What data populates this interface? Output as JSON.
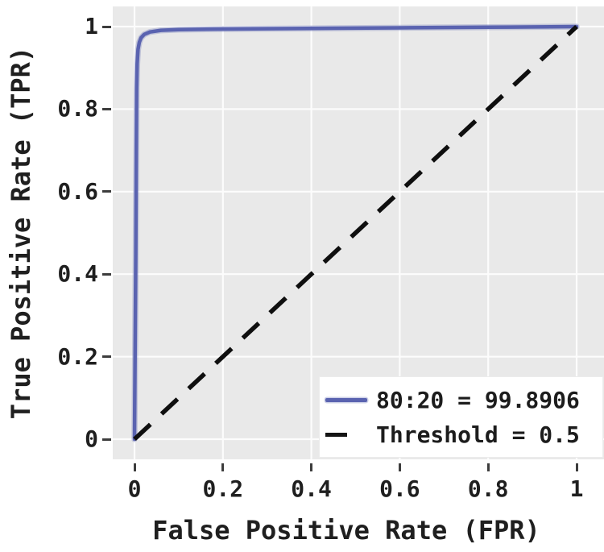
{
  "chart_data": {
    "type": "line",
    "title": "",
    "xlabel": "False Positive Rate (FPR)",
    "ylabel": "True Positive Rate (TPR)",
    "xlim": [
      -0.05,
      1.06
    ],
    "ylim": [
      -0.05,
      1.05
    ],
    "grid": true,
    "legend_position": "lower right",
    "xticks": [
      0,
      0.2,
      0.4,
      0.6,
      0.8,
      1
    ],
    "yticks": [
      0,
      0.2,
      0.4,
      0.6,
      0.8,
      1
    ],
    "xtick_labels": [
      "0",
      "0.2",
      "0.4",
      "0.6",
      "0.8",
      "1"
    ],
    "ytick_labels": [
      "0",
      "0.2",
      "0.4",
      "0.6",
      "0.8",
      "1"
    ],
    "series": [
      {
        "name": "80:20 = 99.8906",
        "style": "solid",
        "color": "#5a63b0",
        "width": 4.5,
        "points": [
          [
            0,
            0
          ],
          [
            0.003,
            0.45
          ],
          [
            0.004,
            0.7
          ],
          [
            0.005,
            0.85
          ],
          [
            0.006,
            0.91
          ],
          [
            0.008,
            0.945
          ],
          [
            0.011,
            0.962
          ],
          [
            0.015,
            0.973
          ],
          [
            0.022,
            0.981
          ],
          [
            0.035,
            0.987
          ],
          [
            0.06,
            0.991
          ],
          [
            0.1,
            0.9925
          ],
          [
            0.18,
            0.994
          ],
          [
            0.3,
            0.995
          ],
          [
            0.45,
            0.996
          ],
          [
            0.6,
            0.997
          ],
          [
            0.8,
            0.9985
          ],
          [
            1.0,
            1.0
          ]
        ]
      },
      {
        "name": "Threshold = 0.5",
        "style": "dashed",
        "color": "#0f0f0f",
        "width": 5.5,
        "points": [
          [
            0,
            0
          ],
          [
            1,
            1
          ]
        ]
      }
    ],
    "auc_value": "99.8906",
    "threshold_value": "0.5",
    "split_ratio": "80:20",
    "colors": {
      "plot_bg": "#e9e9e9",
      "grid": "#fcfcfc",
      "text": "#1f1f1f",
      "tick": "#3d3d3d",
      "legend_bg": "#ffffff",
      "curve": "#5a63b0",
      "threshold": "#0f0f0f"
    }
  }
}
